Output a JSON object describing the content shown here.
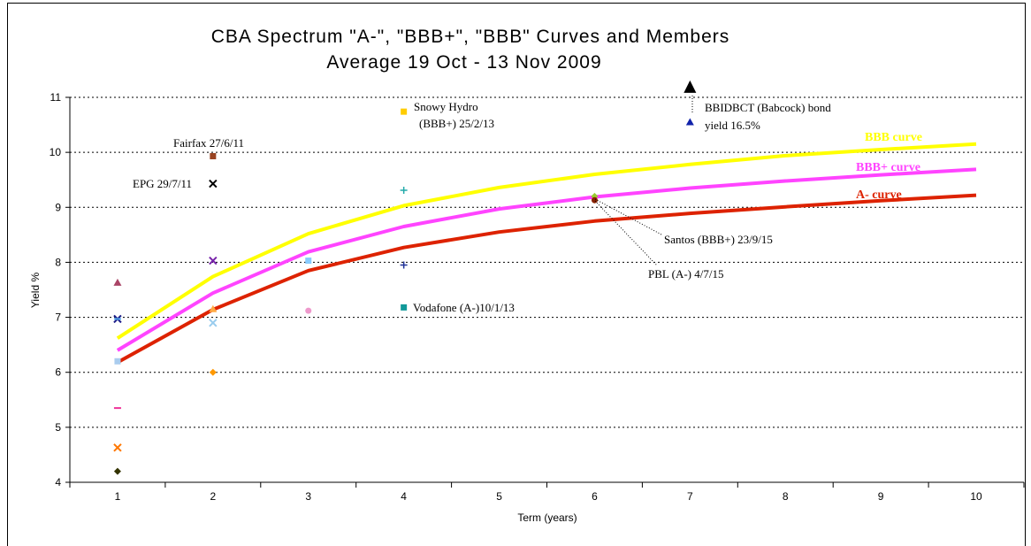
{
  "chart_data": {
    "type": "line",
    "title": "CBA Spectrum \"A-\", \"BBB+\", \"BBB\" Curves and Members",
    "subtitle": "Average 19 Oct - 13 Nov 2009",
    "xlabel": "Term (years)",
    "ylabel": "Yield %",
    "xlim": [
      0.5,
      10.5
    ],
    "ylim": [
      4,
      11
    ],
    "x_ticks": [
      "1",
      "2",
      "3",
      "4",
      "5",
      "6",
      "7",
      "8",
      "9",
      "10"
    ],
    "y_ticks": [
      "4",
      "5",
      "6",
      "7",
      "8",
      "9",
      "10",
      "11"
    ],
    "grid": "horizontal dotted",
    "series": [
      {
        "name": "BBB curve",
        "color": "#ffff00",
        "x": [
          1,
          2,
          3,
          4,
          5,
          6,
          7,
          8,
          9,
          10
        ],
        "values": [
          6.62,
          7.74,
          8.52,
          9.03,
          9.36,
          9.6,
          9.78,
          9.94,
          10.05,
          10.15
        ]
      },
      {
        "name": "BBB+ curve",
        "color": "#ff44ff",
        "x": [
          1,
          2,
          3,
          4,
          5,
          6,
          7,
          8,
          9,
          10
        ],
        "values": [
          6.4,
          7.44,
          8.19,
          8.65,
          8.97,
          9.19,
          9.35,
          9.48,
          9.59,
          9.69
        ]
      },
      {
        "name": "A- curve",
        "color": "#dd2200",
        "x": [
          1,
          2,
          3,
          4,
          5,
          6,
          7,
          8,
          9,
          10
        ],
        "values": [
          6.18,
          7.14,
          7.85,
          8.27,
          8.55,
          8.75,
          8.89,
          9.01,
          9.12,
          9.22
        ]
      }
    ],
    "points": [
      {
        "x": 1,
        "y": 7.63,
        "shape": "triangle",
        "color": "#aa4466"
      },
      {
        "x": 1,
        "y": 6.97,
        "shape": "x",
        "color": "#1a1a88"
      },
      {
        "x": 1,
        "y": 6.97,
        "shape": "dash",
        "color": "#55aaee"
      },
      {
        "x": 1,
        "y": 6.2,
        "shape": "square",
        "color": "#aaccee"
      },
      {
        "x": 1,
        "y": 5.35,
        "shape": "dash",
        "color": "#ee3399"
      },
      {
        "x": 1,
        "y": 4.63,
        "shape": "x",
        "color": "#ff7700"
      },
      {
        "x": 1,
        "y": 4.2,
        "shape": "diamond",
        "color": "#333300"
      },
      {
        "x": 2,
        "y": 9.93,
        "shape": "square",
        "color": "#994422"
      },
      {
        "x": 2,
        "y": 9.43,
        "shape": "x",
        "color": "#000000"
      },
      {
        "x": 2,
        "y": 8.03,
        "shape": "x",
        "color": "#7722aa"
      },
      {
        "x": 2,
        "y": 7.15,
        "shape": "triangle",
        "color": "#ffaa44"
      },
      {
        "x": 2,
        "y": 6.9,
        "shape": "x",
        "color": "#99ccee"
      },
      {
        "x": 2,
        "y": 6.0,
        "shape": "diamond",
        "color": "#ff9900"
      },
      {
        "x": 3,
        "y": 8.03,
        "shape": "square",
        "color": "#88ccff"
      },
      {
        "x": 3,
        "y": 7.12,
        "shape": "circle",
        "color": "#ee99cc"
      },
      {
        "x": 4,
        "y": 10.74,
        "shape": "square",
        "color": "#ffcc00"
      },
      {
        "x": 4,
        "y": 9.31,
        "shape": "plus",
        "color": "#22aaaa"
      },
      {
        "x": 4,
        "y": 7.95,
        "shape": "plus",
        "color": "#223399"
      },
      {
        "x": 4,
        "y": 7.18,
        "shape": "square",
        "color": "#119999"
      },
      {
        "x": 6,
        "y": 9.2,
        "shape": "diamond",
        "color": "#99cc33"
      },
      {
        "x": 6,
        "y": 9.13,
        "shape": "circle",
        "color": "#882200"
      },
      {
        "x": 7,
        "y": 11.18,
        "shape": "triangle-large",
        "color": "#000000"
      },
      {
        "x": 7,
        "y": 10.55,
        "shape": "triangle",
        "color": "#1122aa"
      }
    ],
    "annotations": [
      {
        "text": "Fairfax 27/6/11"
      },
      {
        "text": "EPG 29/7/11"
      },
      {
        "text": "Snowy Hydro"
      },
      {
        "text": "(BBB+) 25/2/13"
      },
      {
        "text": "Vodafone (A-)10/1/13"
      },
      {
        "text": "Santos (BBB+) 23/9/15"
      },
      {
        "text": "PBL (A-) 4/7/15"
      },
      {
        "text": "BBIDBCT (Babcock) bond"
      },
      {
        "text": "yield 16.5%"
      }
    ]
  }
}
